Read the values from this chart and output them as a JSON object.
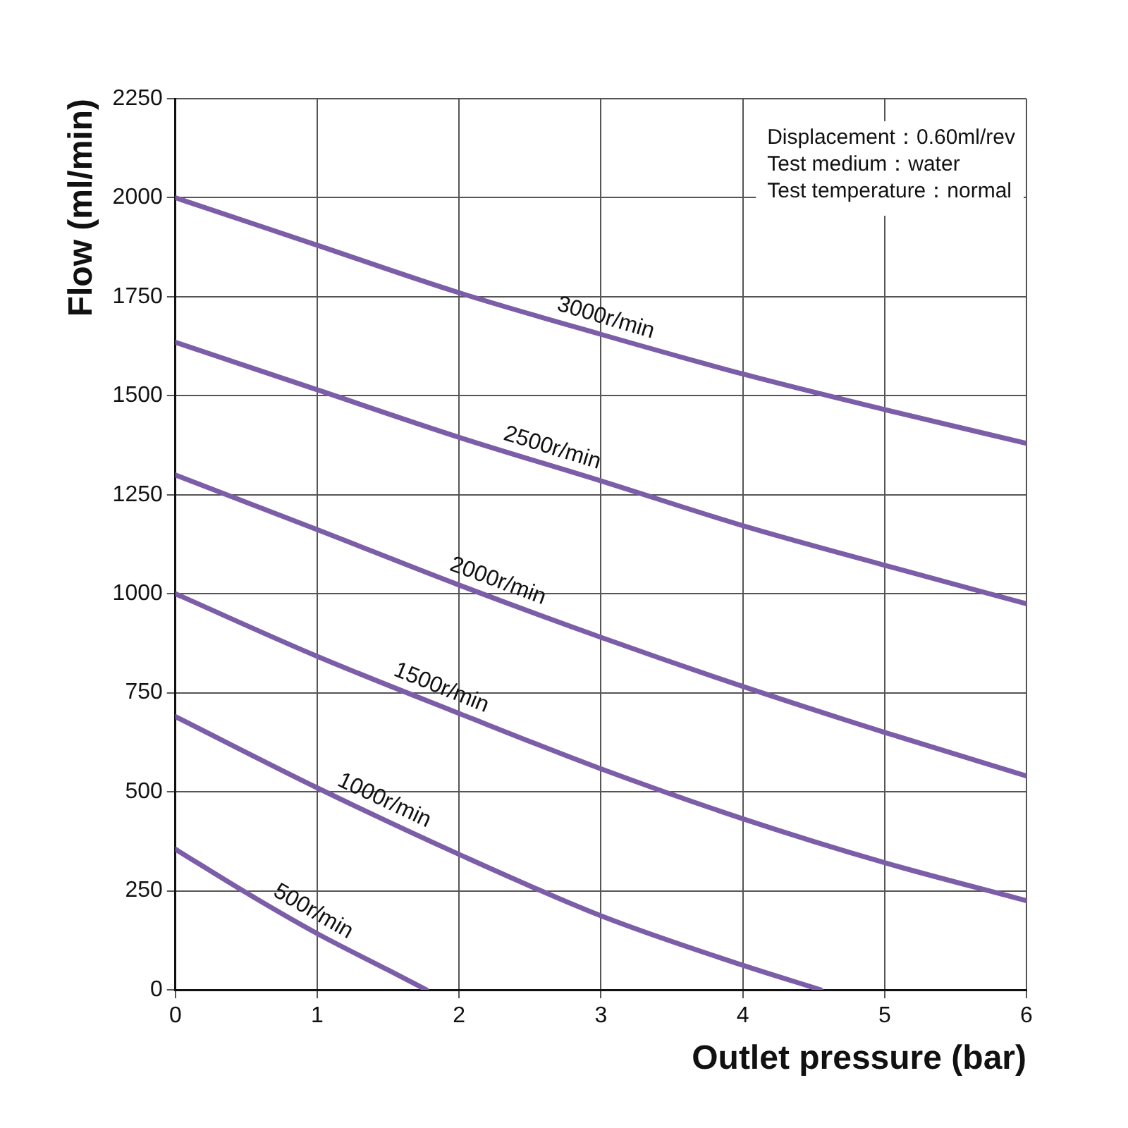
{
  "chart_data": {
    "type": "line",
    "xlabel": "Outlet pressure (bar)",
    "ylabel": "Flow (ml/min)",
    "xlim": [
      0,
      6
    ],
    "xticks": [
      0,
      1,
      2,
      3,
      4,
      5,
      6
    ],
    "ylim": [
      0,
      2250
    ],
    "yticks": [
      0,
      250,
      500,
      750,
      1000,
      1250,
      1500,
      1750,
      2000,
      2250
    ],
    "grid": true,
    "legend": false,
    "marker": "none",
    "line_style": "solid",
    "series": [
      {
        "name": "3000r/min",
        "color": "#7b5ea7",
        "x": [
          0,
          1,
          2,
          3,
          4,
          5,
          6
        ],
        "values": [
          2000,
          1880,
          1760,
          1655,
          1555,
          1465,
          1380
        ]
      },
      {
        "name": "2500r/min",
        "color": "#7b5ea7",
        "x": [
          0,
          1,
          2,
          3,
          4,
          5,
          6
        ],
        "values": [
          1635,
          1515,
          1395,
          1285,
          1172,
          1072,
          975
        ]
      },
      {
        "name": "2000r/min",
        "color": "#7b5ea7",
        "x": [
          0,
          1,
          2,
          3,
          4,
          5,
          6
        ],
        "values": [
          1300,
          1162,
          1022,
          890,
          766,
          650,
          540
        ]
      },
      {
        "name": "1500r/min",
        "color": "#7b5ea7",
        "x": [
          0,
          1,
          2,
          3,
          4,
          5,
          6
        ],
        "values": [
          1000,
          842,
          698,
          558,
          432,
          321,
          225
        ]
      },
      {
        "name": "1000r/min",
        "color": "#7b5ea7",
        "x": [
          0,
          1,
          2,
          3,
          4,
          4.55
        ],
        "values": [
          690,
          510,
          342,
          187,
          62,
          0
        ]
      },
      {
        "name": "500r/min",
        "color": "#7b5ea7",
        "x": [
          0,
          0.5,
          1,
          1.5,
          1.77
        ],
        "values": [
          355,
          245,
          142,
          50,
          0
        ]
      }
    ],
    "annotations": [
      "Displacement：0.60ml/rev",
      "Test medium：water",
      "Test temperature：normal"
    ]
  }
}
